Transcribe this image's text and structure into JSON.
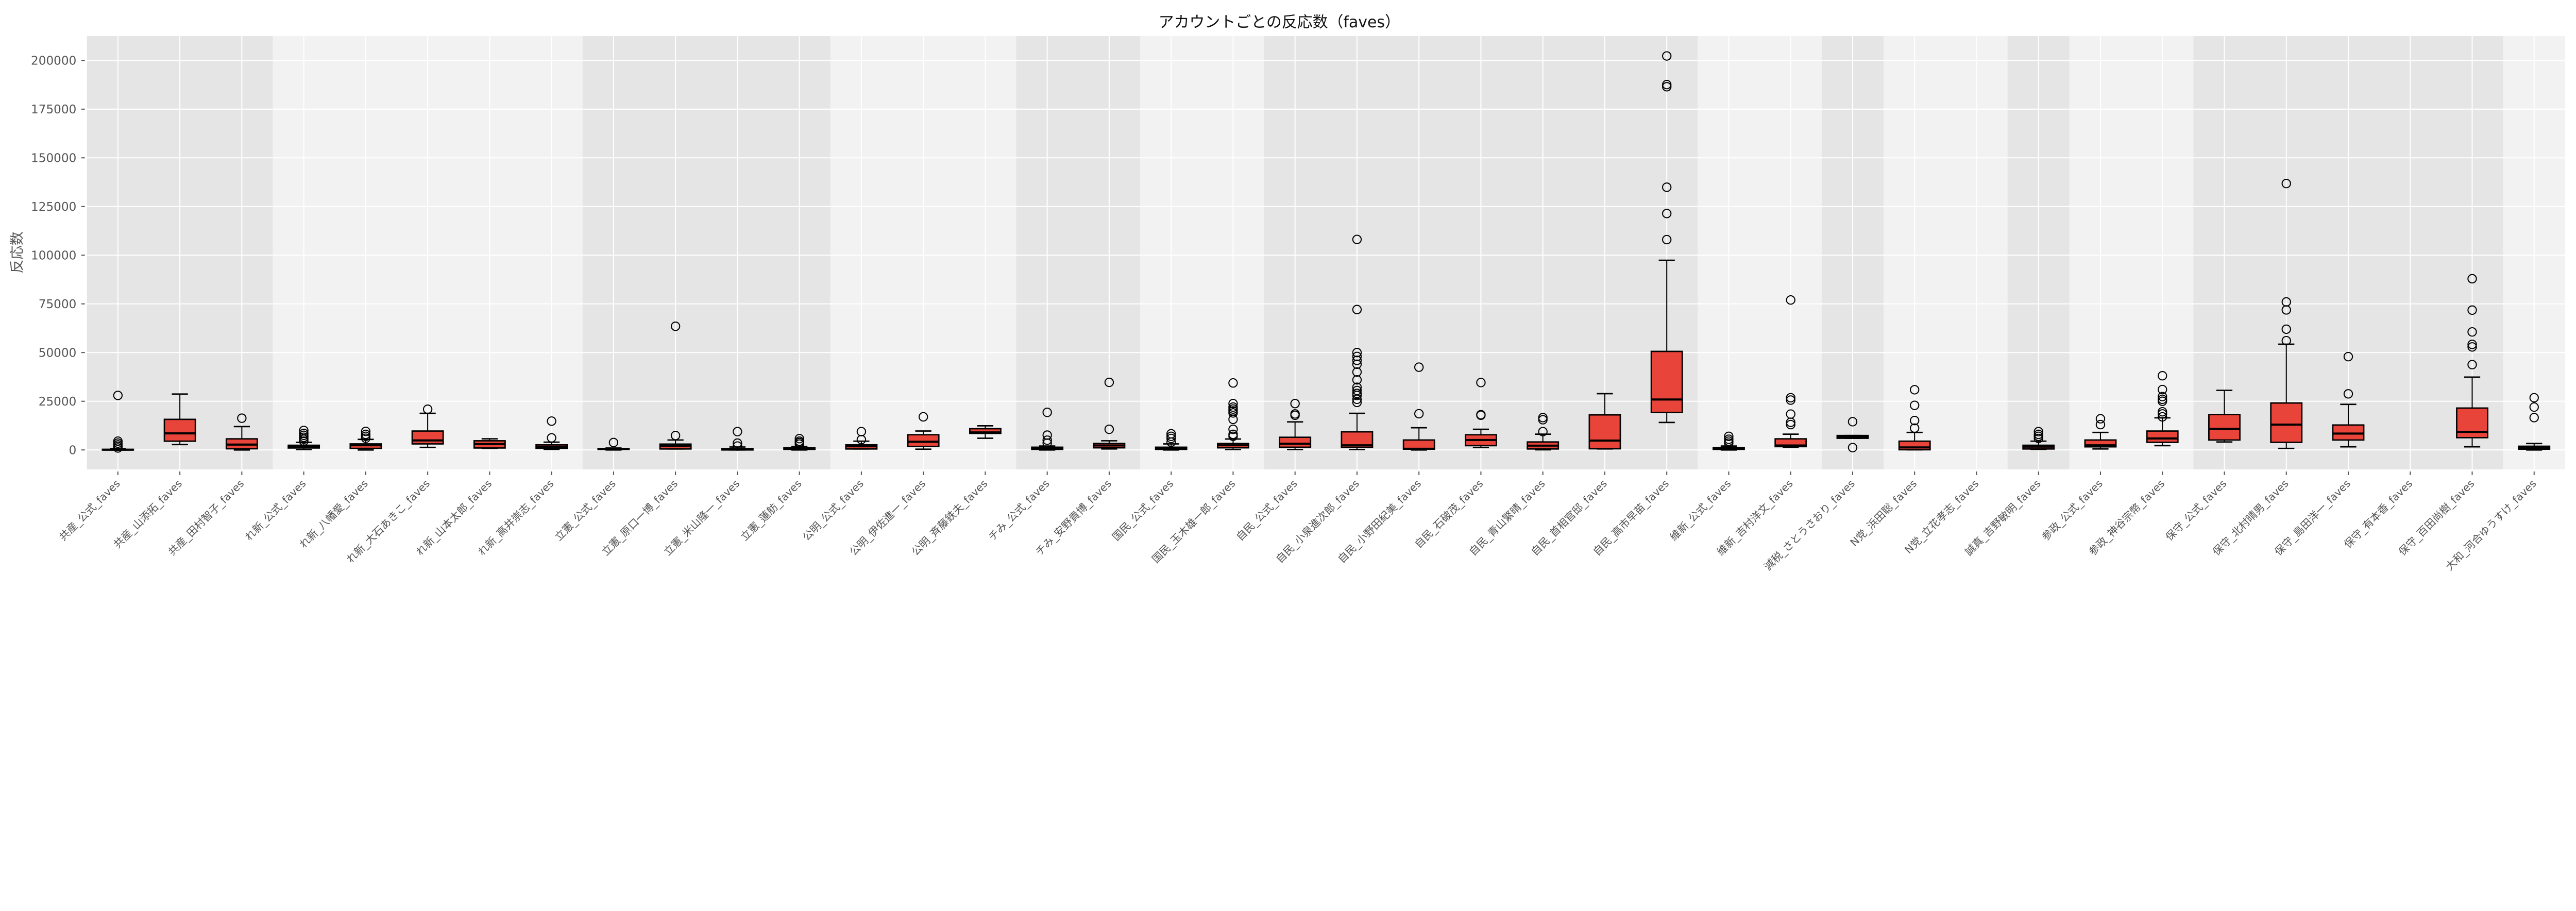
{
  "chart_data": {
    "type": "box",
    "title": "アカウントごとの反応数（faves）",
    "xlabel": "",
    "ylabel": "反応数",
    "ylim": [
      -10000,
      212500
    ],
    "yticks": [
      0,
      25000,
      50000,
      75000,
      100000,
      125000,
      150000,
      175000,
      200000
    ],
    "grid": true,
    "colors": {
      "box_fill": "#e8443a",
      "band_dark": "#e5e5e5",
      "band_light": "#f2f2f2",
      "grid": "#ffffff",
      "outline": "#000000"
    },
    "background_bands": [
      {
        "start": 0,
        "count": 3,
        "shade": "dark"
      },
      {
        "start": 3,
        "count": 5,
        "shade": "light"
      },
      {
        "start": 8,
        "count": 4,
        "shade": "dark"
      },
      {
        "start": 12,
        "count": 3,
        "shade": "light"
      },
      {
        "start": 15,
        "count": 2,
        "shade": "dark"
      },
      {
        "start": 17,
        "count": 2,
        "shade": "light"
      },
      {
        "start": 19,
        "count": 7,
        "shade": "dark"
      },
      {
        "start": 26,
        "count": 2,
        "shade": "light"
      },
      {
        "start": 28,
        "count": 1,
        "shade": "dark"
      },
      {
        "start": 29,
        "count": 2,
        "shade": "light"
      },
      {
        "start": 31,
        "count": 1,
        "shade": "dark"
      },
      {
        "start": 32,
        "count": 2,
        "shade": "light"
      },
      {
        "start": 34,
        "count": 5,
        "shade": "dark"
      },
      {
        "start": 39,
        "count": 1,
        "shade": "light"
      }
    ],
    "categories": [
      "共産_公式_faves",
      "共産_山添拓_faves",
      "共産_田村智子_faves",
      "れ新_公式_faves",
      "れ新_八幡愛_faves",
      "れ新_大石あきこ_faves",
      "れ新_山本太郎_faves",
      "れ新_高井崇志_faves",
      "立憲_公式_faves",
      "立憲_原口一博_faves",
      "立憲_米山隆一_faves",
      "立憲_蓮舫_faves",
      "公明_公式_faves",
      "公明_伊佐進一_faves",
      "公明_斉藤鉄夫_faves",
      "チみ_公式_faves",
      "チみ_安野貴博_faves",
      "国民_公式_faves",
      "国民_玉木雄一郎_faves",
      "自民_公式_faves",
      "自民_小泉進次郎_faves",
      "自民_小野田紀美_faves",
      "自民_石破茂_faves",
      "自民_青山繁晴_faves",
      "自民_首相官邸_faves",
      "自民_高市早苗_faves",
      "維新_公式_faves",
      "維新_吉村洋文_faves",
      "減税_さとうさおり_faves",
      "N党_浜田聡_faves",
      "N党_立花孝志_faves",
      "誠真_吉野敏明_faves",
      "参政_公式_faves",
      "参政_神谷宗幣_faves",
      "保守_公式_faves",
      "保守_北村晴男_faves",
      "保守_島田洋一_faves",
      "保守_有本香_faves",
      "保守_百田尚樹_faves",
      "大和_河合ゆうすけ_faves"
    ],
    "boxes": [
      {
        "whislo": 0,
        "q1": 0,
        "med": 100,
        "q3": 300,
        "whishi": 700,
        "fliers": [
          1000,
          1800,
          2600,
          3500,
          4500,
          28000
        ]
      },
      {
        "whislo": 2750,
        "q1": 4500,
        "med": 8500,
        "q3": 15700,
        "whishi": 28700,
        "fliers": []
      },
      {
        "whislo": 0,
        "q1": 600,
        "med": 2750,
        "q3": 5700,
        "whishi": 12000,
        "fliers": [
          16300
        ]
      },
      {
        "whislo": 200,
        "q1": 1000,
        "med": 1700,
        "q3": 2400,
        "whishi": 3900,
        "fliers": [
          4500,
          5500,
          6500,
          7500,
          8500,
          10000
        ]
      },
      {
        "whislo": 0,
        "q1": 800,
        "med": 2400,
        "q3": 3100,
        "whishi": 5400,
        "fliers": [
          6000,
          7000,
          8000,
          9500
        ]
      },
      {
        "whislo": 1300,
        "q1": 3100,
        "med": 4900,
        "q3": 9700,
        "whishi": 18800,
        "fliers": [
          20900
        ]
      },
      {
        "whislo": 800,
        "q1": 1000,
        "med": 3000,
        "q3": 4700,
        "whishi": 5700,
        "fliers": []
      },
      {
        "whislo": 300,
        "q1": 800,
        "med": 1500,
        "q3": 2600,
        "whishi": 4000,
        "fliers": [
          6200,
          14800
        ]
      },
      {
        "whislo": 0,
        "q1": 300,
        "med": 500,
        "q3": 700,
        "whishi": 1000,
        "fliers": [
          3800
        ]
      },
      {
        "whislo": 500,
        "q1": 500,
        "med": 2150,
        "q3": 3000,
        "whishi": 5100,
        "fliers": [
          7400,
          63500
        ]
      },
      {
        "whislo": 0,
        "q1": 0,
        "med": 300,
        "q3": 700,
        "whishi": 1500,
        "fliers": [
          2000,
          3500,
          9400
        ]
      },
      {
        "whislo": 0,
        "q1": 300,
        "med": 600,
        "q3": 1100,
        "whishi": 1800,
        "fliers": [
          3000,
          3800,
          4500,
          5800
        ]
      },
      {
        "whislo": 500,
        "q1": 500,
        "med": 1900,
        "q3": 2600,
        "whishi": 4500,
        "fliers": [
          5300,
          9400
        ]
      },
      {
        "whislo": 400,
        "q1": 1800,
        "med": 4200,
        "q3": 7800,
        "whishi": 9700,
        "fliers": [
          17000
        ]
      },
      {
        "whislo": 6000,
        "q1": 8500,
        "med": 9000,
        "q3": 10900,
        "whishi": 12400,
        "fliers": []
      },
      {
        "whislo": 0,
        "q1": 300,
        "med": 800,
        "q3": 1400,
        "whishi": 2000,
        "fliers": [
          3500,
          5000,
          7600,
          19300
        ]
      },
      {
        "whislo": 500,
        "q1": 1100,
        "med": 2300,
        "q3": 3300,
        "whishi": 4700,
        "fliers": [
          10600,
          34700
        ]
      },
      {
        "whislo": 0,
        "q1": 300,
        "med": 800,
        "q3": 1400,
        "whishi": 3100,
        "fliers": [
          4000,
          5900,
          7000,
          8300
        ]
      },
      {
        "whislo": 200,
        "q1": 1100,
        "med": 2400,
        "q3": 3300,
        "whishi": 5600,
        "fliers": [
          7000,
          8000,
          10600,
          15700,
          19000,
          20000,
          21000,
          22000,
          23800,
          34400
        ]
      },
      {
        "whislo": 200,
        "q1": 1400,
        "med": 3200,
        "q3": 6500,
        "whishi": 14400,
        "fliers": [
          17800,
          18500,
          23800
        ]
      },
      {
        "whislo": 200,
        "q1": 1400,
        "med": 2400,
        "q3": 9300,
        "whishi": 18800,
        "fliers": [
          24400,
          26000,
          28000,
          29000,
          30500,
          32200,
          36000,
          40000,
          44000,
          46000,
          48000,
          50000,
          72100,
          108100
        ]
      },
      {
        "whislo": 0,
        "q1": 400,
        "med": 600,
        "q3": 5100,
        "whishi": 11400,
        "fliers": [
          18600,
          42500
        ]
      },
      {
        "whislo": 1200,
        "q1": 2200,
        "med": 5100,
        "q3": 7800,
        "whishi": 10600,
        "fliers": [
          17800,
          18100,
          34600
        ]
      },
      {
        "whislo": 100,
        "q1": 500,
        "med": 2200,
        "q3": 4100,
        "whishi": 8100,
        "fliers": [
          9400,
          15500,
          16600
        ]
      },
      {
        "whislo": 500,
        "q1": 600,
        "med": 4800,
        "q3": 18000,
        "whishi": 28900,
        "fliers": []
      },
      {
        "whislo": 14100,
        "q1": 19200,
        "med": 25900,
        "q3": 50600,
        "whishi": 97400,
        "fliers": [
          108000,
          121400,
          134900,
          186500,
          187600,
          202300
        ]
      },
      {
        "whislo": 0,
        "q1": 300,
        "med": 700,
        "q3": 1200,
        "whishi": 2000,
        "fliers": [
          3500,
          4500,
          5500,
          7000
        ]
      },
      {
        "whislo": 1400,
        "q1": 1700,
        "med": 2300,
        "q3": 5700,
        "whishi": 8100,
        "fliers": [
          13000,
          14200,
          18400,
          25600,
          26800,
          77000
        ]
      },
      {
        "whislo": 6000,
        "q1": 6000,
        "med": 6800,
        "q3": 7400,
        "whishi": 7400,
        "fliers": [
          1200,
          14500
        ]
      },
      {
        "whislo": 100,
        "q1": 100,
        "med": 1300,
        "q3": 4500,
        "whishi": 9000,
        "fliers": [
          11200,
          15100,
          22900,
          30900
        ]
      },
      null,
      {
        "whislo": 300,
        "q1": 500,
        "med": 1700,
        "q3": 2400,
        "whishi": 4500,
        "fliers": [
          5900,
          7000,
          8000,
          9400
        ]
      },
      {
        "whislo": 500,
        "q1": 1600,
        "med": 2400,
        "q3": 5100,
        "whishi": 9000,
        "fliers": [
          13000,
          16000
        ]
      },
      {
        "whislo": 2200,
        "q1": 3900,
        "med": 5900,
        "q3": 9700,
        "whishi": 16500,
        "fliers": [
          17000,
          18500,
          19600,
          25000,
          26000,
          27400,
          31000,
          38100
        ]
      },
      {
        "whislo": 4100,
        "q1": 5100,
        "med": 10800,
        "q3": 18200,
        "whishi": 30600,
        "fliers": []
      },
      {
        "whislo": 800,
        "q1": 3900,
        "med": 13000,
        "q3": 24100,
        "whishi": 54300,
        "fliers": [
          56100,
          62000,
          71900,
          76000,
          136800
        ]
      },
      {
        "whislo": 1600,
        "q1": 5100,
        "med": 8400,
        "q3": 12800,
        "whishi": 23400,
        "fliers": [
          28800,
          47900
        ]
      },
      null,
      {
        "whislo": 1600,
        "q1": 6300,
        "med": 9300,
        "q3": 21500,
        "whishi": 37400,
        "fliers": [
          43800,
          52900,
          54200,
          60600,
          71800,
          87900
        ]
      },
      {
        "whislo": 0,
        "q1": 400,
        "med": 1200,
        "q3": 1900,
        "whishi": 3300,
        "fliers": [
          16600,
          22000,
          26800
        ]
      }
    ]
  }
}
